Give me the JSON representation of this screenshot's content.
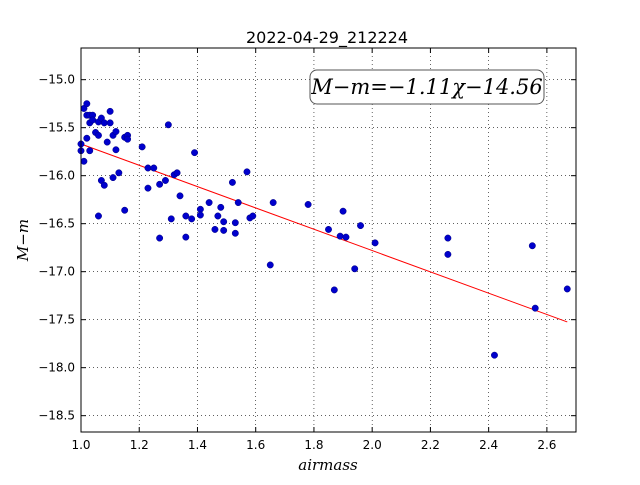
{
  "chart_data": {
    "type": "scatter",
    "title": "2022-04-29_212224",
    "xlabel": "airmass",
    "ylabel": "M−m",
    "xlim": [
      1.0,
      2.7
    ],
    "ylim": [
      -18.67,
      -14.67
    ],
    "y_inverted": false,
    "grid": true,
    "xticks": [
      1.0,
      1.2,
      1.4,
      1.6,
      1.8,
      2.0,
      2.2,
      2.4,
      2.6
    ],
    "xtick_labels": [
      "1.0",
      "1.2",
      "1.4",
      "1.6",
      "1.8",
      "2.0",
      "2.2",
      "2.4",
      "2.6"
    ],
    "yticks": [
      -15.0,
      -15.5,
      -16.0,
      -16.5,
      -17.0,
      -17.5,
      -18.0,
      -18.5
    ],
    "ytick_labels": [
      "−15.0",
      "−15.5",
      "−16.0",
      "−16.5",
      "−17.0",
      "−17.5",
      "−18.0",
      "−18.5"
    ],
    "annotation": "M−m=−1.11χ−14.56",
    "fit": {
      "slope": -1.11,
      "intercept": -14.56,
      "x_range": [
        1.0,
        2.67
      ],
      "color": "#ff0000"
    },
    "point_color": "#0000cc",
    "points": [
      [
        1.0,
        -15.67
      ],
      [
        1.0,
        -15.74
      ],
      [
        1.01,
        -15.3
      ],
      [
        1.01,
        -15.85
      ],
      [
        1.02,
        -15.25
      ],
      [
        1.02,
        -15.37
      ],
      [
        1.02,
        -15.61
      ],
      [
        1.03,
        -15.37
      ],
      [
        1.03,
        -15.45
      ],
      [
        1.03,
        -15.74
      ],
      [
        1.04,
        -15.37
      ],
      [
        1.04,
        -15.42
      ],
      [
        1.05,
        -15.55
      ],
      [
        1.06,
        -15.58
      ],
      [
        1.06,
        -15.44
      ],
      [
        1.06,
        -16.42
      ],
      [
        1.07,
        -16.05
      ],
      [
        1.07,
        -15.4
      ],
      [
        1.08,
        -15.45
      ],
      [
        1.08,
        -16.1
      ],
      [
        1.09,
        -15.65
      ],
      [
        1.1,
        -15.33
      ],
      [
        1.1,
        -15.45
      ],
      [
        1.11,
        -15.58
      ],
      [
        1.11,
        -16.02
      ],
      [
        1.12,
        -15.54
      ],
      [
        1.12,
        -15.73
      ],
      [
        1.13,
        -15.97
      ],
      [
        1.15,
        -15.6
      ],
      [
        1.15,
        -16.36
      ],
      [
        1.16,
        -15.58
      ],
      [
        1.16,
        -15.62
      ],
      [
        1.21,
        -15.7
      ],
      [
        1.23,
        -15.92
      ],
      [
        1.23,
        -16.13
      ],
      [
        1.25,
        -15.92
      ],
      [
        1.27,
        -16.09
      ],
      [
        1.27,
        -16.65
      ],
      [
        1.29,
        -16.05
      ],
      [
        1.3,
        -15.47
      ],
      [
        1.31,
        -16.45
      ],
      [
        1.32,
        -15.99
      ],
      [
        1.33,
        -15.97
      ],
      [
        1.34,
        -16.21
      ],
      [
        1.36,
        -16.64
      ],
      [
        1.36,
        -16.42
      ],
      [
        1.38,
        -16.45
      ],
      [
        1.39,
        -15.76
      ],
      [
        1.41,
        -16.35
      ],
      [
        1.41,
        -16.41
      ],
      [
        1.44,
        -16.28
      ],
      [
        1.46,
        -16.56
      ],
      [
        1.47,
        -16.42
      ],
      [
        1.48,
        -16.33
      ],
      [
        1.49,
        -16.57
      ],
      [
        1.49,
        -16.48
      ],
      [
        1.52,
        -16.07
      ],
      [
        1.53,
        -16.49
      ],
      [
        1.53,
        -16.6
      ],
      [
        1.54,
        -16.28
      ],
      [
        1.57,
        -15.96
      ],
      [
        1.58,
        -16.44
      ],
      [
        1.59,
        -16.42
      ],
      [
        1.65,
        -16.93
      ],
      [
        1.66,
        -16.28
      ],
      [
        1.78,
        -16.3
      ],
      [
        1.85,
        -16.56
      ],
      [
        1.87,
        -17.19
      ],
      [
        1.89,
        -16.63
      ],
      [
        1.9,
        -16.37
      ],
      [
        1.91,
        -16.64
      ],
      [
        1.94,
        -16.97
      ],
      [
        1.96,
        -16.52
      ],
      [
        2.01,
        -16.7
      ],
      [
        2.26,
        -16.65
      ],
      [
        2.26,
        -16.82
      ],
      [
        2.42,
        -17.87
      ],
      [
        2.55,
        -16.73
      ],
      [
        2.56,
        -17.38
      ],
      [
        2.67,
        -17.18
      ]
    ]
  }
}
